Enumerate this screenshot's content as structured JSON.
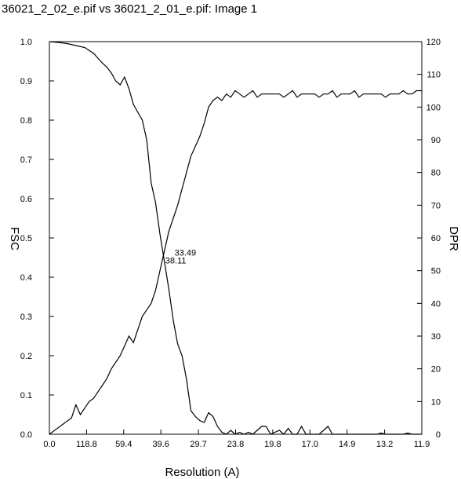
{
  "title": "36021_2_02_e.pif vs 36021_2_01_e.pif: Image 1",
  "chart_data": {
    "type": "line",
    "xlabel": "Resolution (A)",
    "ylabel_left": "FSC",
    "ylabel_right": "DPR",
    "x_ticks": [
      "0.0",
      "118.8",
      "59.4",
      "39.6",
      "29.7",
      "23.8",
      "19.8",
      "17.0",
      "14.9",
      "13.2",
      "11.9"
    ],
    "x_tick_positions": [
      0,
      0.0084,
      0.0168,
      0.0252,
      0.0337,
      0.0421,
      0.0505,
      0.0589,
      0.0673,
      0.0758,
      0.0842
    ],
    "x_range": [
      0,
      0.0842
    ],
    "ylim_left": [
      0,
      1.0
    ],
    "yticks_left": [
      "0.0",
      "0.1",
      "0.2",
      "0.3",
      "0.4",
      "0.5",
      "0.6",
      "0.7",
      "0.8",
      "0.9",
      "1.0"
    ],
    "ylim_right": [
      0,
      120
    ],
    "yticks_right": [
      "0",
      "10",
      "20",
      "30",
      "40",
      "50",
      "60",
      "70",
      "80",
      "90",
      "100",
      "110",
      "120"
    ],
    "annotations": [
      {
        "text": "33.49",
        "x": 0.0283,
        "y": 0.455,
        "axis": "left"
      },
      {
        "text": "38.11",
        "x": 0.0262,
        "y": 0.435,
        "axis": "left"
      }
    ],
    "series": [
      {
        "axis": "left",
        "x": [
          0,
          0.002,
          0.004,
          0.006,
          0.008,
          0.01,
          0.012,
          0.013,
          0.014,
          0.015,
          0.016,
          0.017,
          0.018,
          0.019,
          0.02,
          0.021,
          0.022,
          0.023,
          0.024,
          0.025,
          0.026,
          0.027,
          0.028,
          0.029,
          0.03,
          0.031,
          0.032,
          0.033,
          0.034,
          0.035,
          0.036,
          0.037,
          0.038,
          0.039,
          0.04,
          0.041,
          0.042,
          0.043,
          0.044,
          0.045,
          0.046,
          0.047,
          0.048,
          0.049,
          0.05,
          0.051,
          0.052,
          0.053,
          0.054,
          0.055,
          0.056,
          0.057,
          0.058,
          0.059,
          0.06,
          0.061,
          0.062,
          0.063,
          0.064,
          0.065,
          0.066,
          0.067,
          0.068,
          0.069,
          0.07,
          0.071,
          0.072,
          0.073,
          0.074,
          0.075,
          0.076,
          0.077,
          0.078,
          0.079,
          0.08,
          0.081,
          0.082,
          0.083,
          0.0842
        ],
        "y": [
          1.0,
          0.998,
          0.995,
          0.99,
          0.985,
          0.97,
          0.945,
          0.935,
          0.92,
          0.9,
          0.89,
          0.91,
          0.88,
          0.84,
          0.82,
          0.8,
          0.75,
          0.64,
          0.59,
          0.51,
          0.44,
          0.37,
          0.29,
          0.23,
          0.2,
          0.14,
          0.06,
          0.045,
          0.035,
          0.03,
          0.055,
          0.045,
          0.02,
          0.005,
          0.0,
          0.01,
          0.0,
          0.005,
          0.0,
          0.005,
          0.0,
          0.01,
          0.02,
          0.02,
          0.0,
          0.005,
          0.01,
          0.0,
          0.015,
          0.0,
          0.0,
          0.02,
          0.0,
          0.0,
          0.0,
          0.0,
          0.01,
          0.02,
          0.0,
          0.0,
          0.0,
          0.0,
          0.0,
          0.0,
          0.0,
          0.0,
          0.0,
          0.0,
          0.0,
          0.003,
          0.0,
          0.0,
          0.0,
          0.0,
          0.0,
          0.003,
          0.0,
          0.0,
          0.0
        ]
      },
      {
        "axis": "right",
        "x": [
          0,
          0.001,
          0.002,
          0.003,
          0.004,
          0.005,
          0.006,
          0.007,
          0.008,
          0.009,
          0.01,
          0.011,
          0.012,
          0.013,
          0.014,
          0.015,
          0.016,
          0.017,
          0.018,
          0.019,
          0.02,
          0.021,
          0.022,
          0.023,
          0.024,
          0.025,
          0.026,
          0.027,
          0.028,
          0.029,
          0.03,
          0.031,
          0.032,
          0.033,
          0.034,
          0.035,
          0.036,
          0.037,
          0.038,
          0.039,
          0.04,
          0.041,
          0.042,
          0.043,
          0.044,
          0.045,
          0.046,
          0.047,
          0.048,
          0.049,
          0.05,
          0.051,
          0.052,
          0.053,
          0.054,
          0.055,
          0.056,
          0.057,
          0.058,
          0.059,
          0.06,
          0.061,
          0.062,
          0.063,
          0.064,
          0.065,
          0.066,
          0.067,
          0.068,
          0.069,
          0.07,
          0.071,
          0.072,
          0.073,
          0.074,
          0.075,
          0.076,
          0.077,
          0.078,
          0.079,
          0.08,
          0.081,
          0.082,
          0.083,
          0.0842
        ],
        "y": [
          0,
          1,
          2,
          3,
          4,
          5,
          9,
          6,
          8,
          10,
          11,
          13,
          15,
          17,
          20,
          22,
          24,
          27,
          30,
          28,
          32,
          36,
          38,
          40,
          44,
          50,
          56,
          62,
          66,
          70,
          75,
          80,
          85,
          88,
          91,
          95,
          100,
          102,
          103,
          102,
          104,
          103,
          105,
          104,
          103,
          104,
          105,
          103,
          104,
          104,
          104,
          104,
          104,
          103,
          104,
          105,
          103,
          104,
          104,
          104,
          104,
          103,
          104,
          104,
          105,
          103,
          104,
          104,
          104,
          105,
          103,
          104,
          104,
          104,
          104,
          104,
          103,
          104,
          104,
          104,
          105,
          104,
          104,
          105,
          105
        ]
      }
    ]
  }
}
